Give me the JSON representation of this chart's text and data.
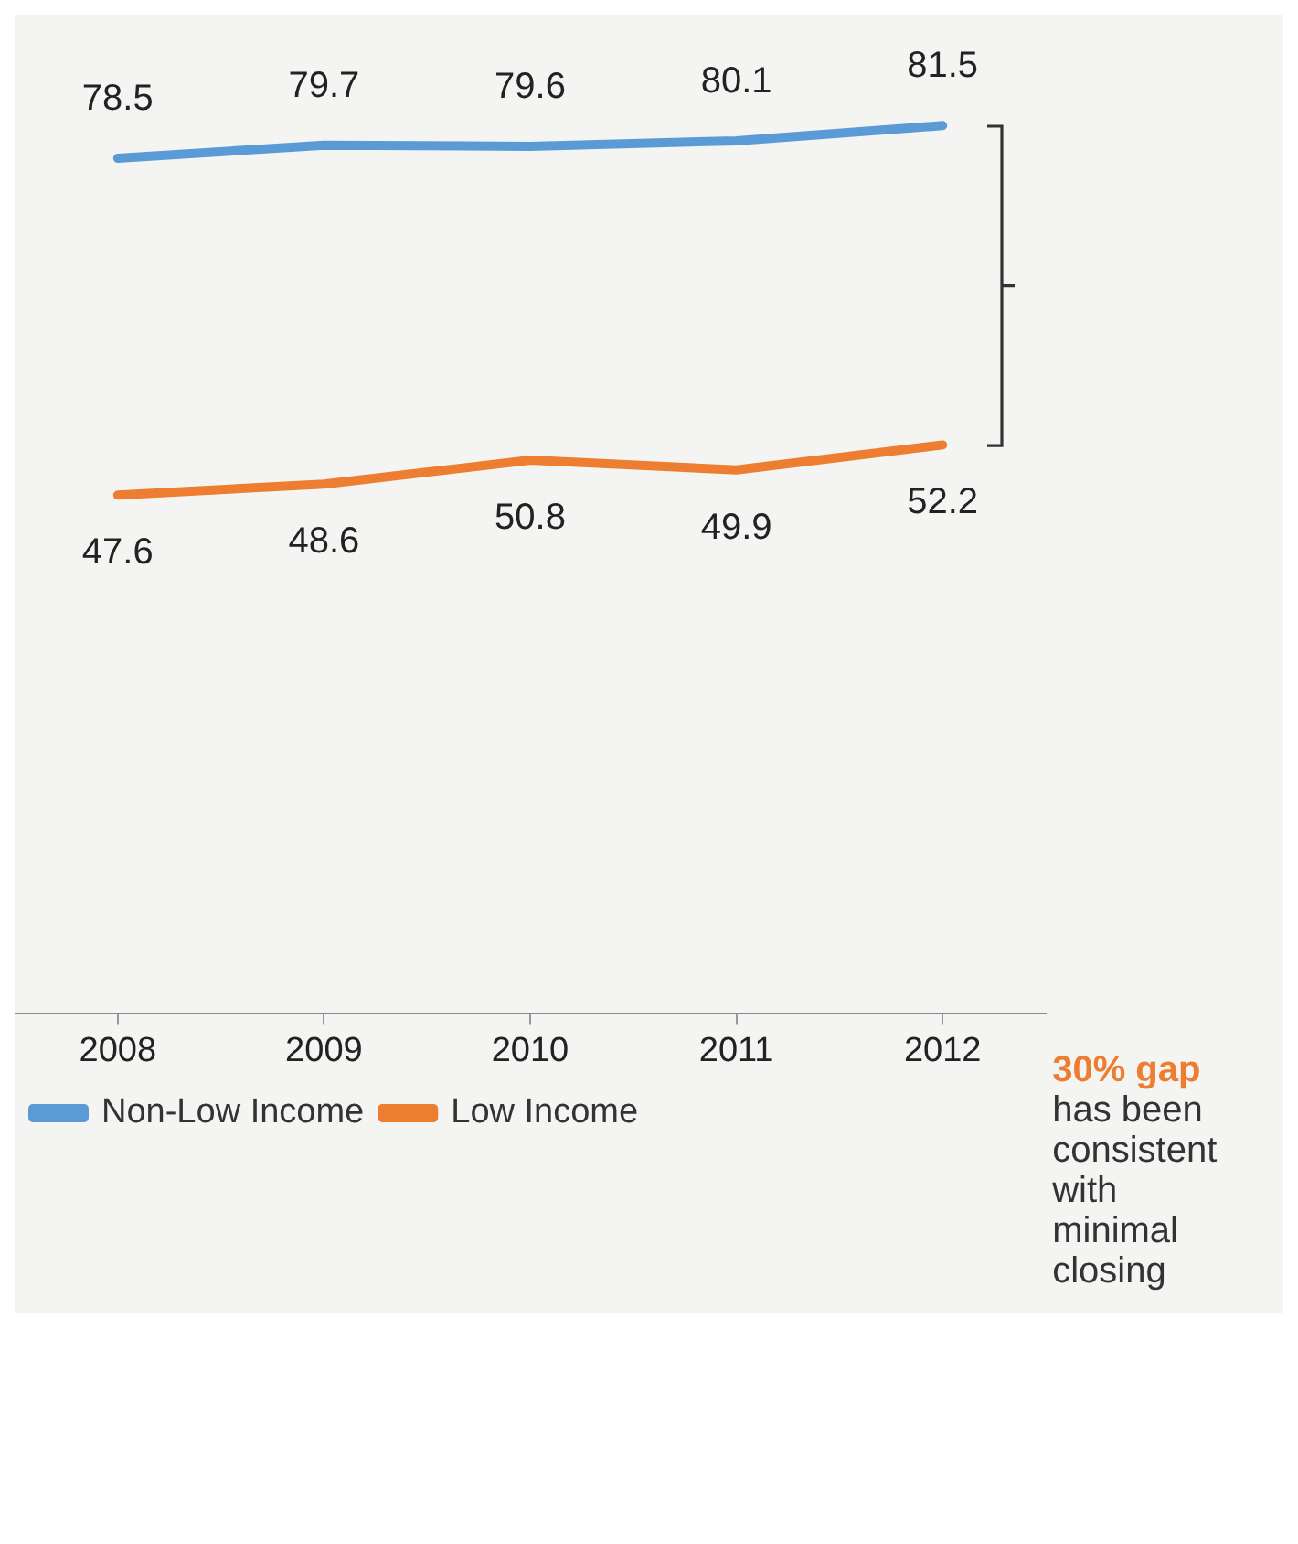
{
  "chart_data": {
    "type": "line",
    "categories": [
      "2008",
      "2009",
      "2010",
      "2011",
      "2012"
    ],
    "series": [
      {
        "name": "Non-Low Income",
        "color": "#5b9bd5",
        "values": [
          78.5,
          79.7,
          79.6,
          80.1,
          81.5
        ]
      },
      {
        "name": "Low Income",
        "color": "#ed7d31",
        "values": [
          47.6,
          48.6,
          50.8,
          49.9,
          52.2
        ]
      }
    ],
    "tick_labels": "x",
    "data_labels": true,
    "legend": "bottom",
    "grid": false,
    "marker": "none",
    "line_style": "solid",
    "annotations": [
      "30% gap",
      "has been consistent with minimal closing"
    ]
  }
}
